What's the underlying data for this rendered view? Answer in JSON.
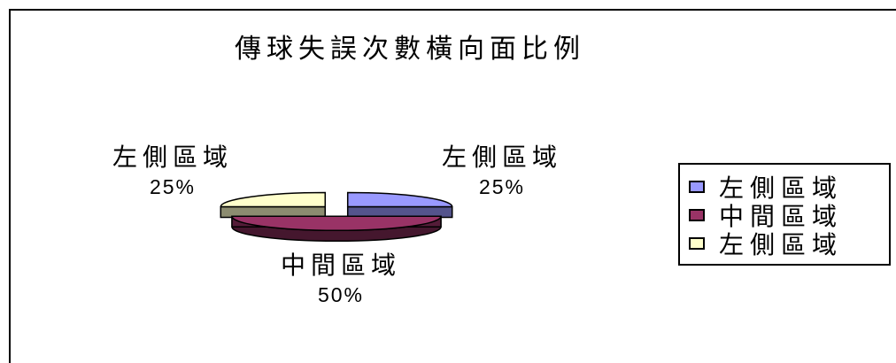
{
  "chart_data": {
    "type": "pie",
    "title": "傳球失誤次數橫向面比例",
    "categories": [
      "左側區域",
      "中間區域",
      "左側區域"
    ],
    "values": [
      25,
      50,
      25
    ],
    "data_labels": [
      {
        "name": "左側區域",
        "percent": "25%"
      },
      {
        "name": "中間區域",
        "percent": "50%"
      },
      {
        "name": "左側區域",
        "percent": "25%"
      }
    ],
    "colors": [
      "#9999ff",
      "#993366",
      "#ffffcc"
    ],
    "legend": {
      "placement": "right",
      "items": [
        {
          "label": "左側區域",
          "color": "#9999ff"
        },
        {
          "label": "中間區域",
          "color": "#993366"
        },
        {
          "label": "左側區域",
          "color": "#ffffcc"
        }
      ]
    },
    "style": "3d-exploded"
  }
}
